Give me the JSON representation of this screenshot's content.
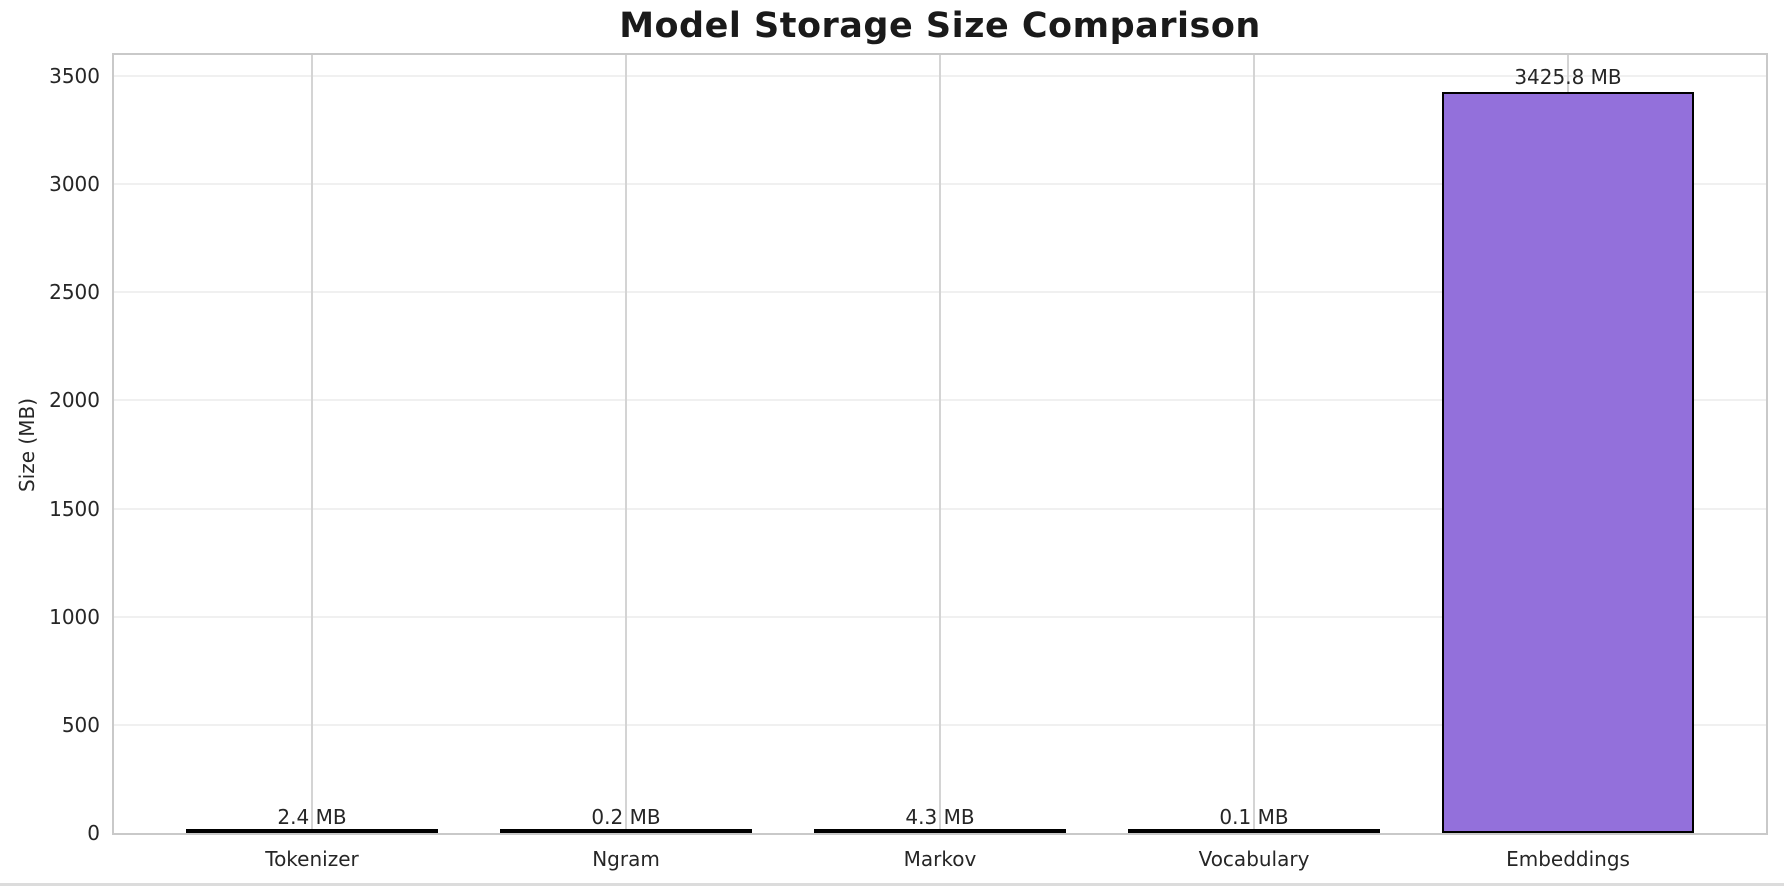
{
  "chart_data": {
    "type": "bar",
    "title": "Model Storage Size Comparison",
    "ylabel": "Size (MB)",
    "xlabel": "",
    "categories": [
      "Tokenizer",
      "Ngram",
      "Markov",
      "Vocabulary",
      "Embeddings"
    ],
    "values": [
      2.4,
      0.2,
      4.3,
      0.1,
      3425.8
    ],
    "value_labels": [
      "2.4 MB",
      "0.2 MB",
      "4.3 MB",
      "0.1 MB",
      "3425.8 MB"
    ],
    "yticks": [
      0,
      500,
      1000,
      1500,
      2000,
      2500,
      3000,
      3500
    ],
    "ylim": [
      0,
      3617
    ],
    "grid": "on",
    "legend": "none",
    "bar_color": "#9370DB",
    "bar_edge_color": "#000000",
    "title_color": "#1a1a1a",
    "tick_color": "#262626",
    "grid_color_horizontal": "#f0f0f0",
    "grid_color_vertical": "#d4d4d4",
    "spine_color": "#c9c9c9"
  }
}
